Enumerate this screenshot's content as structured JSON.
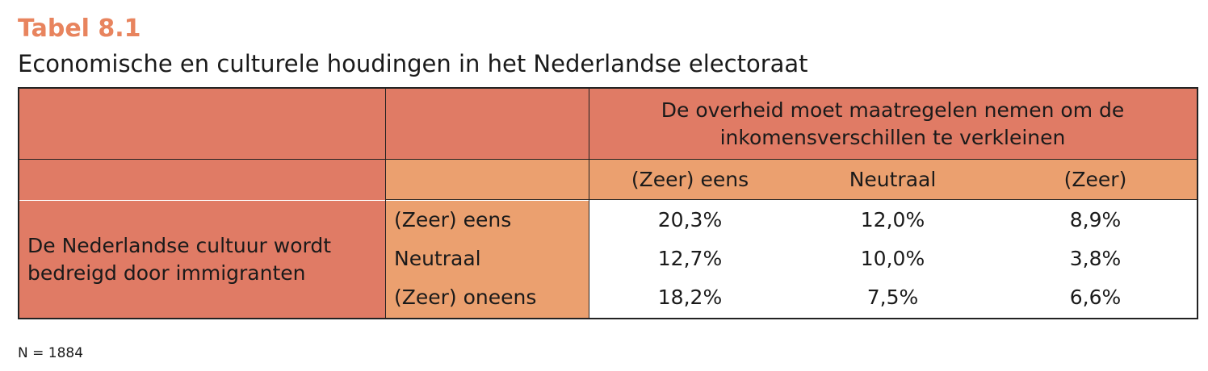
{
  "header": {
    "title": "Tabel 8.1",
    "subtitle": "Economische en culturele houdingen in het Nederlandse electoraat"
  },
  "table": {
    "column_header": "De overheid moet maatregelen nemen om de inkomensverschillen te verkleinen",
    "columns": [
      "(Zeer) eens",
      "Neutraal",
      "(Zeer)"
    ],
    "row_group": "De Nederlandse cultuur wordt bedreigd door immigranten",
    "rows": [
      [
        "(Zeer) eens",
        "20,3%",
        "12,0%",
        "8,9%"
      ],
      [
        "Neutraal",
        "12,7%",
        "10,0%",
        "3,8%"
      ],
      [
        "(Zeer) oneens",
        "18,2%",
        "7,5%",
        "6,6%"
      ]
    ]
  },
  "footnote": "N = 1884"
}
